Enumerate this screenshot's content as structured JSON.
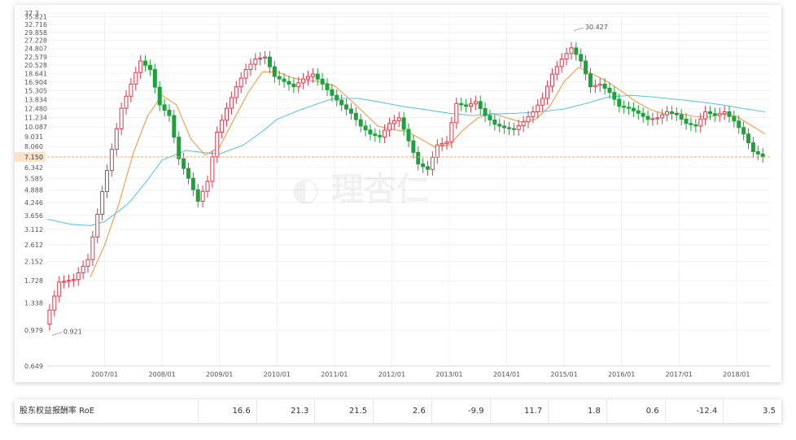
{
  "chart_data": {
    "type": "candlestick",
    "y_scale": "log",
    "ylim": [
      0.649,
      37.3
    ],
    "y_ticks": [
      "0.649",
      "0.979",
      "1.338",
      "1.728",
      "2.152",
      "2.612",
      "3.112",
      "3.656",
      "4.246",
      "4.888",
      "5.585",
      "6.342",
      "7.150",
      "8.060",
      "9.031",
      "10.087",
      "11.234",
      "12.480",
      "13.834",
      "15.305",
      "16.904",
      "18.641",
      "20.528",
      "22.579",
      "24.807",
      "27.228",
      "29.858",
      "32.716",
      "35.821",
      "37.3"
    ],
    "x_ticks": [
      "2007/01",
      "2008/01",
      "2009/01",
      "2010/01",
      "2011/01",
      "2012/01",
      "2013/01",
      "2014/01",
      "2015/01",
      "2016/01",
      "2017/01",
      "2018/01"
    ],
    "x_range": [
      "2006/01",
      "2018/08"
    ],
    "current_price": "7.150",
    "annotations": [
      {
        "label": "30.427",
        "date": "2015/03",
        "value": 30.427
      },
      {
        "label": "0.921",
        "date": "2006/02",
        "value": 0.921
      }
    ],
    "series": [
      {
        "kind": "close",
        "color": "#d93a4c",
        "points": [
          [
            "2006/01",
            1.05
          ],
          [
            "2006/04",
            1.7
          ],
          [
            "2006/07",
            1.75
          ],
          [
            "2006/10",
            2.2
          ],
          [
            "2007/01",
            4.8
          ],
          [
            "2007/03",
            7.8
          ],
          [
            "2007/05",
            12.5
          ],
          [
            "2007/07",
            16.5
          ],
          [
            "2007/09",
            21.5
          ],
          [
            "2007/11",
            19.5
          ],
          [
            "2008/01",
            13.0
          ],
          [
            "2008/03",
            11.5
          ],
          [
            "2008/05",
            7.0
          ],
          [
            "2008/07",
            5.6
          ],
          [
            "2008/09",
            4.3
          ],
          [
            "2008/11",
            5.4
          ],
          [
            "2009/01",
            9.5
          ],
          [
            "2009/03",
            12.5
          ],
          [
            "2009/05",
            16.0
          ],
          [
            "2009/07",
            19.5
          ],
          [
            "2009/09",
            22.0
          ],
          [
            "2009/11",
            22.5
          ],
          [
            "2010/01",
            18.0
          ],
          [
            "2010/03",
            17.0
          ],
          [
            "2010/05",
            16.0
          ],
          [
            "2010/07",
            17.5
          ],
          [
            "2010/09",
            18.5
          ],
          [
            "2010/11",
            16.5
          ],
          [
            "2011/01",
            14.5
          ],
          [
            "2011/03",
            13.0
          ],
          [
            "2011/05",
            11.8
          ],
          [
            "2011/07",
            10.2
          ],
          [
            "2011/09",
            9.3
          ],
          [
            "2011/11",
            9.0
          ],
          [
            "2012/01",
            10.5
          ],
          [
            "2012/03",
            11.2
          ],
          [
            "2012/05",
            8.6
          ],
          [
            "2012/07",
            6.6
          ],
          [
            "2012/09",
            6.2
          ],
          [
            "2012/11",
            8.2
          ],
          [
            "2013/01",
            8.5
          ],
          [
            "2013/03",
            13.2
          ],
          [
            "2013/05",
            12.8
          ],
          [
            "2013/07",
            13.5
          ],
          [
            "2013/09",
            11.5
          ],
          [
            "2013/11",
            10.4
          ],
          [
            "2014/01",
            10.0
          ],
          [
            "2014/03",
            9.8
          ],
          [
            "2014/05",
            10.7
          ],
          [
            "2014/07",
            12.0
          ],
          [
            "2014/09",
            14.0
          ],
          [
            "2014/11",
            18.5
          ],
          [
            "2015/01",
            22.0
          ],
          [
            "2015/03",
            25.0
          ],
          [
            "2015/05",
            21.5
          ],
          [
            "2015/07",
            16.0
          ],
          [
            "2015/09",
            16.5
          ],
          [
            "2015/11",
            15.0
          ],
          [
            "2016/01",
            12.8
          ],
          [
            "2016/03",
            12.5
          ],
          [
            "2016/05",
            11.8
          ],
          [
            "2016/07",
            11.0
          ],
          [
            "2016/09",
            11.2
          ],
          [
            "2016/11",
            12.0
          ],
          [
            "2017/01",
            11.6
          ],
          [
            "2017/03",
            10.5
          ],
          [
            "2017/05",
            10.2
          ],
          [
            "2017/07",
            12.0
          ],
          [
            "2017/09",
            11.5
          ],
          [
            "2017/11",
            12.0
          ],
          [
            "2018/01",
            10.8
          ],
          [
            "2018/03",
            9.3
          ],
          [
            "2018/05",
            7.6
          ],
          [
            "2018/07",
            7.2
          ]
        ]
      },
      {
        "kind": "ma_short",
        "color": "#f29a4a",
        "points": [
          [
            "2006/10",
            1.8
          ],
          [
            "2007/01",
            2.6
          ],
          [
            "2007/04",
            4.2
          ],
          [
            "2007/07",
            7.5
          ],
          [
            "2007/10",
            11.5
          ],
          [
            "2008/01",
            14.5
          ],
          [
            "2008/04",
            13.0
          ],
          [
            "2008/07",
            8.8
          ],
          [
            "2008/10",
            7.3
          ],
          [
            "2009/01",
            8.0
          ],
          [
            "2009/04",
            11.0
          ],
          [
            "2009/07",
            15.0
          ],
          [
            "2009/10",
            19.0
          ],
          [
            "2010/01",
            19.0
          ],
          [
            "2010/04",
            17.8
          ],
          [
            "2010/07",
            17.2
          ],
          [
            "2010/10",
            17.0
          ],
          [
            "2011/01",
            16.2
          ],
          [
            "2011/04",
            14.0
          ],
          [
            "2011/07",
            12.0
          ],
          [
            "2011/10",
            10.2
          ],
          [
            "2012/01",
            9.8
          ],
          [
            "2012/04",
            9.6
          ],
          [
            "2012/07",
            8.8
          ],
          [
            "2012/10",
            8.0
          ],
          [
            "2013/01",
            8.2
          ],
          [
            "2013/04",
            9.8
          ],
          [
            "2013/07",
            11.2
          ],
          [
            "2013/10",
            11.8
          ],
          [
            "2014/01",
            11.2
          ],
          [
            "2014/04",
            10.7
          ],
          [
            "2014/07",
            11.0
          ],
          [
            "2014/10",
            12.8
          ],
          [
            "2015/01",
            17.0
          ],
          [
            "2015/04",
            20.0
          ],
          [
            "2015/07",
            18.5
          ],
          [
            "2015/10",
            17.0
          ],
          [
            "2016/01",
            15.2
          ],
          [
            "2016/04",
            13.5
          ],
          [
            "2016/07",
            12.3
          ],
          [
            "2016/10",
            11.7
          ],
          [
            "2017/01",
            11.8
          ],
          [
            "2017/04",
            11.4
          ],
          [
            "2017/07",
            11.3
          ],
          [
            "2017/10",
            11.7
          ],
          [
            "2018/01",
            11.4
          ],
          [
            "2018/04",
            10.3
          ],
          [
            "2018/07",
            9.3
          ]
        ]
      },
      {
        "kind": "ma_long",
        "color": "#5cc6de",
        "points": [
          [
            "2006/01",
            3.5
          ],
          [
            "2006/06",
            3.3
          ],
          [
            "2006/10",
            3.25
          ],
          [
            "2007/01",
            3.4
          ],
          [
            "2007/06",
            4.2
          ],
          [
            "2007/10",
            5.5
          ],
          [
            "2008/01",
            6.9
          ],
          [
            "2008/06",
            7.7
          ],
          [
            "2008/10",
            7.5
          ],
          [
            "2009/01",
            7.4
          ],
          [
            "2009/06",
            8.2
          ],
          [
            "2009/10",
            9.6
          ],
          [
            "2010/01",
            11.0
          ],
          [
            "2010/06",
            12.3
          ],
          [
            "2010/10",
            13.3
          ],
          [
            "2011/01",
            14.0
          ],
          [
            "2011/06",
            14.0
          ],
          [
            "2011/10",
            13.5
          ],
          [
            "2012/03",
            12.8
          ],
          [
            "2012/08",
            12.3
          ],
          [
            "2013/01",
            11.8
          ],
          [
            "2013/06",
            11.5
          ],
          [
            "2013/10",
            11.7
          ],
          [
            "2014/03",
            11.8
          ],
          [
            "2014/08",
            12.0
          ],
          [
            "2015/01",
            12.4
          ],
          [
            "2015/06",
            13.3
          ],
          [
            "2015/10",
            14.2
          ],
          [
            "2016/03",
            14.5
          ],
          [
            "2016/08",
            14.2
          ],
          [
            "2017/01",
            13.8
          ],
          [
            "2017/06",
            13.4
          ],
          [
            "2017/10",
            13.0
          ],
          [
            "2018/03",
            12.4
          ],
          [
            "2018/07",
            12.0
          ]
        ]
      }
    ]
  },
  "roe_table": {
    "label": "股东权益报酬率 RoE",
    "values": [
      "16.6",
      "21.3",
      "21.5",
      "2.6",
      "-9.9",
      "11.7",
      "1.8",
      "0.6",
      "-12.4",
      "3.5"
    ]
  },
  "colors": {
    "up": "#d93a4c",
    "down": "#1ca23a",
    "ma_short": "#f29a4a",
    "ma_long": "#5cc6de",
    "current_line": "#f4a460",
    "price_tag_bg": "#fde3c8"
  }
}
